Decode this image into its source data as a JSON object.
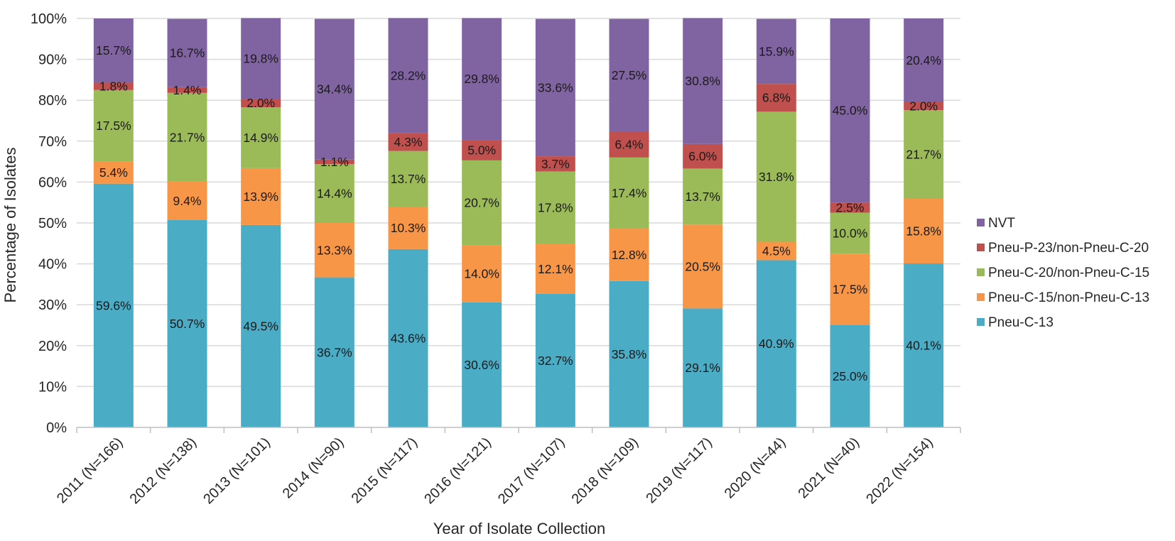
{
  "chart_data": {
    "type": "bar",
    "stacked": true,
    "title": "",
    "xlabel": "Year of Isolate Collection",
    "ylabel": "Percentage of Isolates",
    "ylim": [
      0,
      100
    ],
    "yticks": [
      "0%",
      "10%",
      "20%",
      "30%",
      "40%",
      "50%",
      "60%",
      "70%",
      "80%",
      "90%",
      "100%"
    ],
    "categories": [
      "2011 (N=166)",
      "2012 (N=138)",
      "2013 (N=101)",
      "2014 (N=90)",
      "2015 (N=117)",
      "2016 (N=121)",
      "2017 (N=107)",
      "2018 (N=109)",
      "2019 (N=117)",
      "2020 (N=44)",
      "2021 (N=40)",
      "2022 (N=154)"
    ],
    "series": [
      {
        "name": "Pneu-C-13",
        "color": "#4BACC6",
        "values": [
          59.6,
          50.7,
          49.5,
          36.7,
          43.6,
          30.6,
          32.7,
          35.8,
          29.1,
          40.9,
          25.0,
          40.1
        ],
        "labels": [
          "59.6%",
          "50.7%",
          "49.5%",
          "36.7%",
          "43.6%",
          "30.6%",
          "32.7%",
          "35.8%",
          "29.1%",
          "40.9%",
          "25.0%",
          "40.1%"
        ]
      },
      {
        "name": "Pneu-C-15/non-Pneu-C-13",
        "color": "#F79646",
        "values": [
          5.4,
          9.4,
          13.9,
          13.3,
          10.3,
          14.0,
          12.1,
          12.8,
          20.5,
          4.5,
          17.5,
          15.8
        ],
        "labels": [
          "5.4%",
          "9.4%",
          "13.9%",
          "13.3%",
          "10.3%",
          "14.0%",
          "12.1%",
          "12.8%",
          "20.5%",
          "4.5%",
          "17.5%",
          "15.8%"
        ]
      },
      {
        "name": "Pneu-C-20/non-Pneu-C-15",
        "color": "#9BBB59",
        "values": [
          17.5,
          21.7,
          14.9,
          14.4,
          13.7,
          20.7,
          17.8,
          17.4,
          13.7,
          31.8,
          10.0,
          21.7
        ],
        "labels": [
          "17.5%",
          "21.7%",
          "14.9%",
          "14.4%",
          "13.7%",
          "20.7%",
          "17.8%",
          "17.4%",
          "13.7%",
          "31.8%",
          "10.0%",
          "21.7%"
        ]
      },
      {
        "name": "Pneu-P-23/non-Pneu-C-20",
        "color": "#C0504D",
        "values": [
          1.8,
          1.4,
          2.0,
          1.1,
          4.3,
          5.0,
          3.7,
          6.4,
          6.0,
          6.8,
          2.5,
          2.0
        ],
        "labels": [
          "1.8%",
          "1.4%",
          "2.0%",
          "1.1%",
          "4.3%",
          "5.0%",
          "3.7%",
          "6.4%",
          "6.0%",
          "6.8%",
          "2.5%",
          "2.0%"
        ]
      },
      {
        "name": "NVT",
        "color": "#8064A2",
        "values": [
          15.7,
          16.7,
          19.8,
          34.4,
          28.2,
          29.8,
          33.6,
          27.5,
          30.8,
          15.9,
          45.0,
          20.4
        ],
        "labels": [
          "15.7%",
          "16.7%",
          "19.8%",
          "34.4%",
          "28.2%",
          "29.8%",
          "33.6%",
          "27.5%",
          "30.8%",
          "15.9%",
          "45.0%",
          "20.4%"
        ]
      }
    ],
    "legend_position": "right",
    "grid": true
  }
}
